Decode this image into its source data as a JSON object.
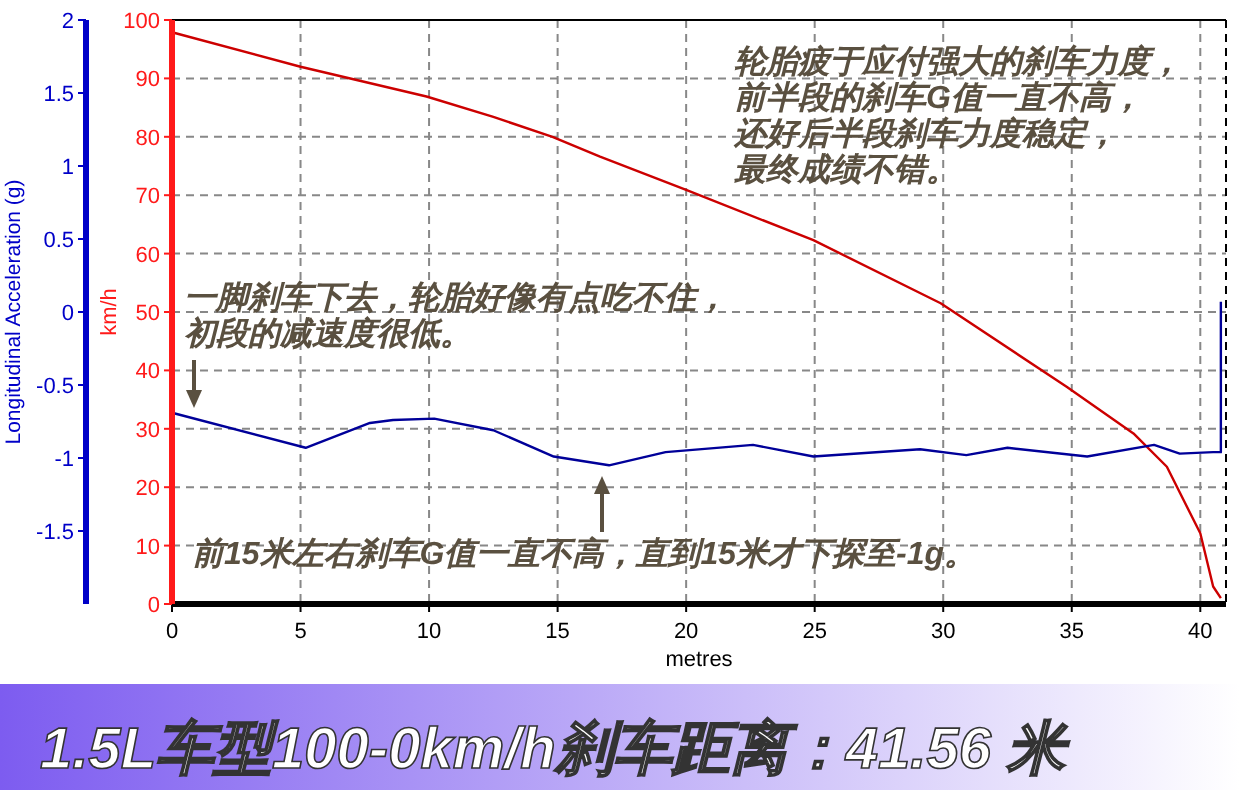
{
  "chart_data": {
    "type": "line",
    "title": "1.5L车型100-0km/h刹车距离：41.56 米",
    "xlabel": "metres",
    "ylabel": "km/h",
    "y2label": "Longitudinal Acceleration (g)",
    "xlim": [
      0,
      41
    ],
    "xticks": [
      0,
      5,
      10,
      15,
      20,
      25,
      30,
      35,
      40
    ],
    "ylim": [
      0,
      100
    ],
    "yticks": [
      0,
      10,
      20,
      30,
      40,
      50,
      60,
      70,
      80,
      90,
      100
    ],
    "y2lim": [
      -2,
      2
    ],
    "y2ticks": [
      -1.5,
      -1,
      -0.5,
      0,
      0.5,
      1,
      1.5,
      2
    ],
    "grid": true,
    "series": [
      {
        "color": "#cc0000",
        "x": [
          0,
          5,
          9.9,
          12.5,
          14.8,
          16.65,
          20,
          24.95,
          29.9,
          34.8,
          37.4,
          38.7,
          40,
          40.5,
          40.8
        ],
        "values": [
          97.9,
          92,
          86.9,
          83.4,
          80,
          76.6,
          70.9,
          62.3,
          51.5,
          37.2,
          29.2,
          23.5,
          12.1,
          3,
          1
        ]
      },
      {
        "color": "#000099",
        "axis": "y2",
        "x": [
          0,
          5.2,
          7.7,
          8.6,
          10.2,
          12.5,
          14.85,
          17,
          19.2,
          22.6,
          24.95,
          29.1,
          30.9,
          32.5,
          35.6,
          38.2,
          39.2,
          40.5,
          40.8,
          40.8
        ],
        "values": [
          -0.69,
          -0.93,
          -0.76,
          -0.74,
          -0.73,
          -0.81,
          -0.99,
          -1.05,
          -0.96,
          -0.91,
          -0.99,
          -0.94,
          -0.98,
          -0.93,
          -0.99,
          -0.91,
          -0.97,
          -0.96,
          -0.96,
          0.07
        ]
      }
    ],
    "annotations": [
      "一脚刹车下去，轮胎好像有点吃不住，初段的减速度很低。",
      "前15米左右刹车G值一直不高，直到15米才下探至-1g。",
      "轮胎疲于应付强大的刹车力度，前半段的刹车G值一直不高，还好后半段刹车力度稳定，最终成绩不错。"
    ]
  }
}
